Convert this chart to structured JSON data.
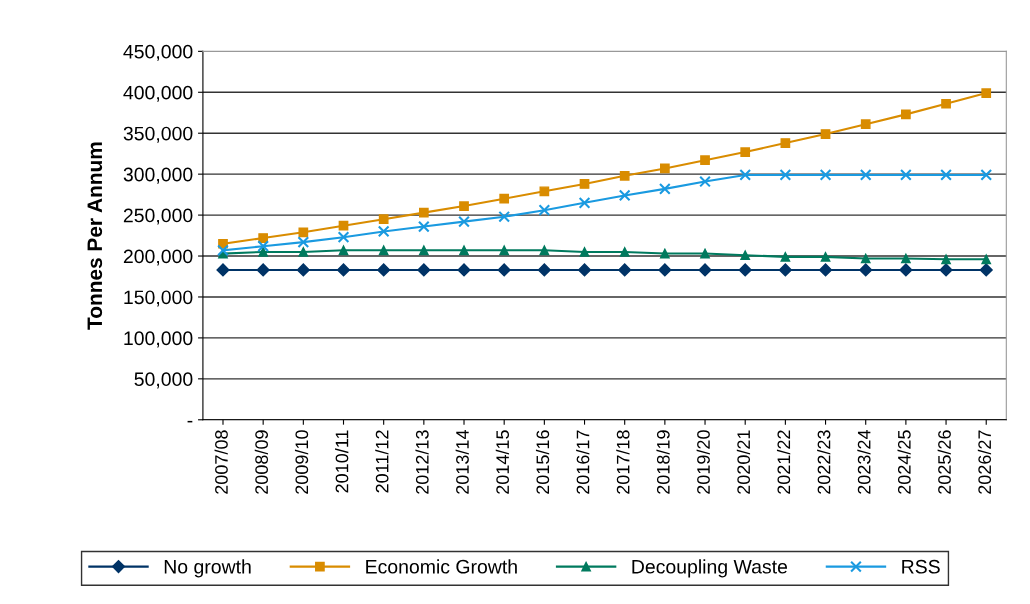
{
  "chart_data": {
    "type": "line",
    "ylabel": "Tonnes Per Annum",
    "categories": [
      "2007/08",
      "2008/09",
      "2009/10",
      "2010/11",
      "2011/12",
      "2012/13",
      "2013/14",
      "2014/15",
      "2015/16",
      "2016/17",
      "2017/18",
      "2018/19",
      "2019/20",
      "2020/21",
      "2021/22",
      "2022/23",
      "2023/24",
      "2024/25",
      "2025/26",
      "2026/27"
    ],
    "series": [
      {
        "name": "No growth",
        "color": "#003366",
        "marker": "diamond",
        "values": [
          183000,
          183000,
          183000,
          183000,
          183000,
          183000,
          183000,
          183000,
          183000,
          183000,
          183000,
          183000,
          183000,
          183000,
          183000,
          183000,
          183000,
          183000,
          183000,
          183000
        ]
      },
      {
        "name": "Economic Growth",
        "color": "#d98c00",
        "marker": "square",
        "values": [
          215000,
          222000,
          229000,
          237000,
          245000,
          253000,
          261000,
          270000,
          279000,
          288000,
          298000,
          307000,
          317000,
          327000,
          338000,
          349000,
          361000,
          373000,
          386000,
          399000
        ]
      },
      {
        "name": "Decoupling Waste",
        "color": "#007a5e",
        "marker": "triangle",
        "values": [
          203000,
          205000,
          205000,
          207000,
          207000,
          207000,
          207000,
          207000,
          207000,
          205000,
          205000,
          203000,
          203000,
          201000,
          199000,
          199000,
          197000,
          197000,
          196000,
          196000
        ]
      },
      {
        "name": "RSS",
        "color": "#1a9ae0",
        "marker": "cross",
        "values": [
          207000,
          212000,
          217000,
          223000,
          230000,
          236000,
          242000,
          248000,
          256000,
          265000,
          274000,
          282000,
          291000,
          299000,
          299000,
          299000,
          299000,
          299000,
          299000,
          299000
        ]
      }
    ],
    "ylim": [
      0,
      450000
    ],
    "yticks": [
      {
        "value": 0,
        "label": "-"
      },
      {
        "value": 50000,
        "label": "50,000"
      },
      {
        "value": 100000,
        "label": "100,000"
      },
      {
        "value": 150000,
        "label": "150,000"
      },
      {
        "value": 200000,
        "label": "200,000"
      },
      {
        "value": 250000,
        "label": "250,000"
      },
      {
        "value": 300000,
        "label": "300,000"
      },
      {
        "value": 350000,
        "label": "350,000"
      },
      {
        "value": 400000,
        "label": "400,000"
      },
      {
        "value": 450000,
        "label": "450,000"
      }
    ],
    "grid": "y",
    "legend": "bottom",
    "line_style": "solid"
  }
}
